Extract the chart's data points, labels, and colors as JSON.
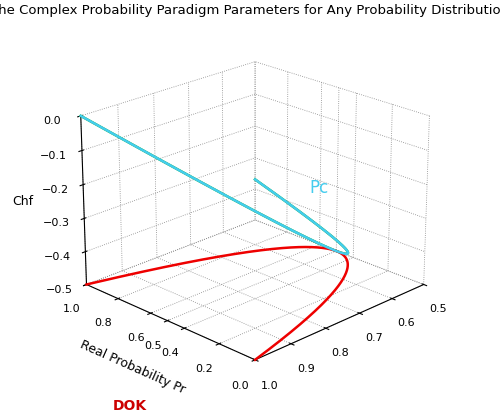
{
  "title": "The Complex Probability Paradigm Parameters for Any Probability Distribution",
  "xlabel_dok": "DOK",
  "xlabel_pr": "Real Probability Pr",
  "zlabel": "Chf",
  "pc_label": "Pc",
  "dok_range": [
    0.5,
    1.0
  ],
  "pr_range": [
    0.0,
    1.0
  ],
  "chf_range": [
    -0.5,
    0.0
  ],
  "dok_ticks": [
    0.5,
    0.6,
    0.7,
    0.8,
    0.9,
    1.0
  ],
  "pr_ticks": [
    0.0,
    0.2,
    0.4,
    0.5,
    0.6,
    0.8,
    1.0
  ],
  "chf_ticks": [
    -0.5,
    -0.4,
    -0.3,
    -0.2,
    -0.1,
    0.0
  ],
  "color_red": "#EE0000",
  "color_green": "#00AA00",
  "color_cyan": "#44CCEE",
  "color_dok_label": "#CC0000",
  "color_pc_label": "#44CCEE",
  "title_fontsize": 9.5,
  "label_fontsize": 9,
  "tick_fontsize": 8,
  "pc_fontsize": 12,
  "lw": 1.8,
  "elev": 22,
  "azim": 225
}
